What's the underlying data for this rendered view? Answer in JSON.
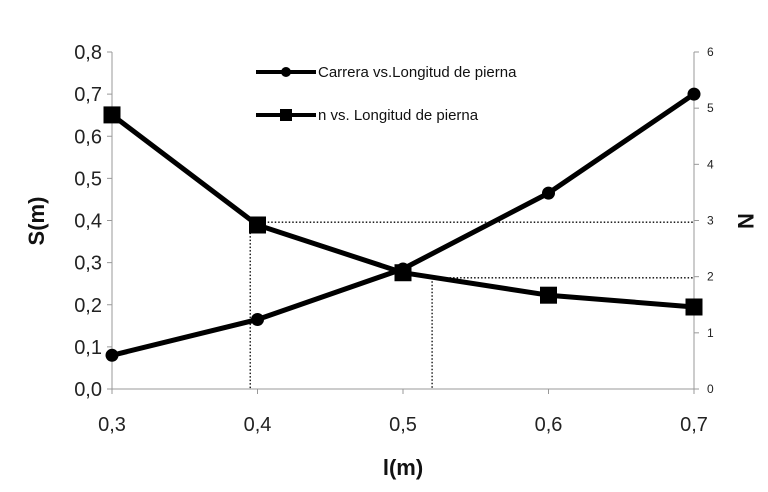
{
  "chart_data": {
    "type": "line",
    "x": [
      0.3,
      0.4,
      0.5,
      0.6,
      0.7
    ],
    "xlabel": "l(m)",
    "ylabel_left": "S(m)",
    "ylabel_right": "N",
    "xlim": [
      0.3,
      0.7
    ],
    "ylim_left": [
      0,
      0.8
    ],
    "ylim_right": [
      0,
      6
    ],
    "x_ticks": [
      "0,3",
      "0,4",
      "0,5",
      "0,6",
      "0,7"
    ],
    "y_left_ticks": [
      "0,0",
      "0,1",
      "0,2",
      "0,3",
      "0,4",
      "0,5",
      "0,6",
      "0,7",
      "0,8"
    ],
    "y_right_ticks": [
      "0",
      "1",
      "2",
      "3",
      "4",
      "5",
      "6"
    ],
    "grid": false,
    "legend_position": "top-center",
    "series": [
      {
        "name": "Carrera vs.Longitud de pierna",
        "axis": "left",
        "marker": "circle",
        "values": [
          0.08,
          0.165,
          0.285,
          0.465,
          0.7
        ]
      },
      {
        "name": "n vs. Longitud de pierna",
        "axis": "right",
        "marker": "square",
        "values": [
          4.88,
          2.92,
          2.07,
          1.67,
          1.46
        ]
      }
    ],
    "reference_lines": [
      {
        "x": 0.395,
        "y_right": 2.97
      },
      {
        "x": 0.52,
        "y_right": 1.98
      }
    ],
    "colors": {
      "line": "#000000",
      "reference": "#000000"
    }
  }
}
